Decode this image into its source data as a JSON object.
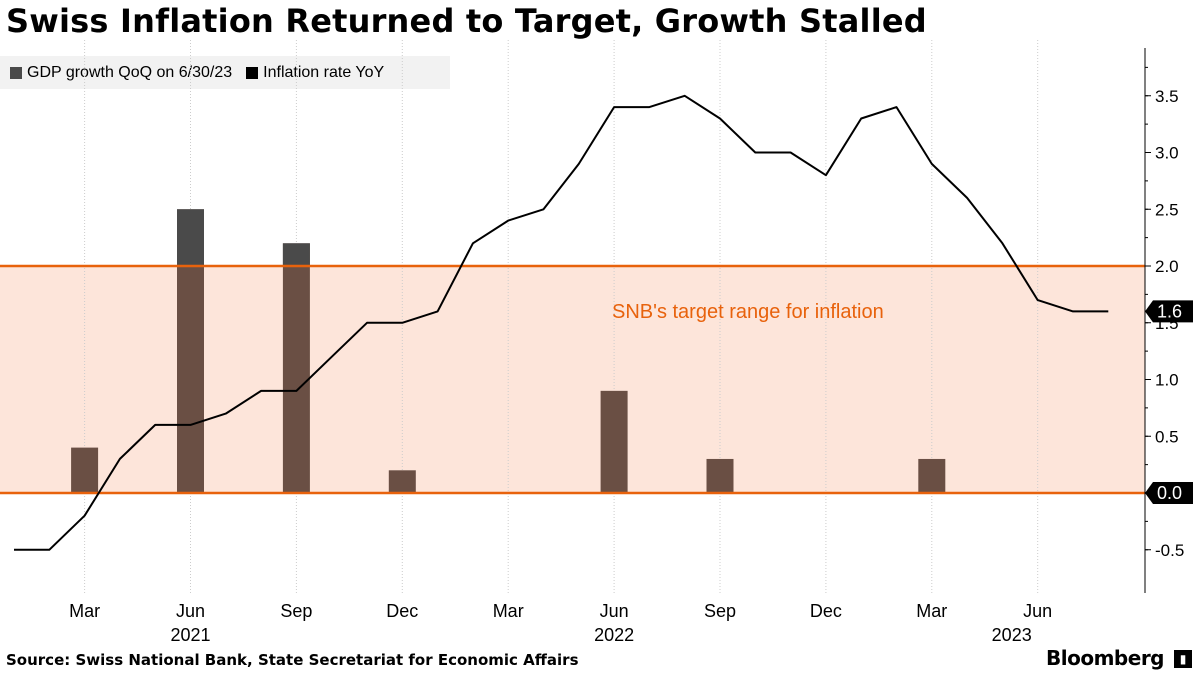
{
  "title": "Swiss Inflation Returned to Target, Growth Stalled",
  "legend": {
    "gdp_label": "GDP growth QoQ on 6/30/23",
    "inflation_label": "Inflation rate YoY"
  },
  "source": "Source: Swiss National Bank, State Secretariat for Economic Affairs",
  "brand": "Bloomberg",
  "colors": {
    "gdp_bar": "#6a4f44",
    "gdp_bar_top": "#4a4a4a",
    "inflation_line": "#000000",
    "target_band": "#fde5da",
    "target_line": "#e8620c",
    "annotation_text": "#e8620c"
  },
  "chart_data": {
    "type": "bar+line",
    "ylim": [
      -0.85,
      3.95
    ],
    "y_ticks": [
      "-0.5",
      "0.0",
      "0.5",
      "1.0",
      "1.5",
      "2.0",
      "2.5",
      "3.0",
      "3.5"
    ],
    "y_axis_position": "right",
    "x_month_labels": [
      "Mar",
      "Jun",
      "Sep",
      "Dec",
      "Mar",
      "Jun",
      "Sep",
      "Dec",
      "Mar",
      "Jun"
    ],
    "x_year_labels": [
      "2021",
      "2022",
      "2023"
    ],
    "target_range": {
      "low": 0.0,
      "high": 2.0,
      "label": "SNB's target range for inflation"
    },
    "series": [
      {
        "name": "GDP growth QoQ on 6/30/23",
        "type": "bar",
        "points": [
          {
            "x": "2021-03",
            "y": 0.4
          },
          {
            "x": "2021-06",
            "y": 2.5
          },
          {
            "x": "2021-09",
            "y": 2.2
          },
          {
            "x": "2021-12",
            "y": 0.2
          },
          {
            "x": "2022-03",
            "y": 0.0
          },
          {
            "x": "2022-06",
            "y": 0.9
          },
          {
            "x": "2022-09",
            "y": 0.3
          },
          {
            "x": "2022-12",
            "y": 0.0
          },
          {
            "x": "2023-03",
            "y": 0.3
          },
          {
            "x": "2023-06",
            "y": 0.0
          }
        ]
      },
      {
        "name": "Inflation rate YoY",
        "type": "line",
        "points": [
          {
            "x": "2021-01",
            "y": -0.5
          },
          {
            "x": "2021-02",
            "y": -0.5
          },
          {
            "x": "2021-03",
            "y": -0.2
          },
          {
            "x": "2021-04",
            "y": 0.3
          },
          {
            "x": "2021-05",
            "y": 0.6
          },
          {
            "x": "2021-06",
            "y": 0.6
          },
          {
            "x": "2021-07",
            "y": 0.7
          },
          {
            "x": "2021-08",
            "y": 0.9
          },
          {
            "x": "2021-09",
            "y": 0.9
          },
          {
            "x": "2021-10",
            "y": 1.2
          },
          {
            "x": "2021-11",
            "y": 1.5
          },
          {
            "x": "2021-12",
            "y": 1.5
          },
          {
            "x": "2022-01",
            "y": 1.6
          },
          {
            "x": "2022-02",
            "y": 2.2
          },
          {
            "x": "2022-03",
            "y": 2.4
          },
          {
            "x": "2022-04",
            "y": 2.5
          },
          {
            "x": "2022-05",
            "y": 2.9
          },
          {
            "x": "2022-06",
            "y": 3.4
          },
          {
            "x": "2022-07",
            "y": 3.4
          },
          {
            "x": "2022-08",
            "y": 3.5
          },
          {
            "x": "2022-09",
            "y": 3.3
          },
          {
            "x": "2022-10",
            "y": 3.0
          },
          {
            "x": "2022-11",
            "y": 3.0
          },
          {
            "x": "2022-12",
            "y": 2.8
          },
          {
            "x": "2023-01",
            "y": 3.3
          },
          {
            "x": "2023-02",
            "y": 3.4
          },
          {
            "x": "2023-03",
            "y": 2.9
          },
          {
            "x": "2023-04",
            "y": 2.6
          },
          {
            "x": "2023-05",
            "y": 2.2
          },
          {
            "x": "2023-06",
            "y": 1.7
          },
          {
            "x": "2023-07",
            "y": 1.6
          },
          {
            "x": "2023-08",
            "y": 1.6
          }
        ]
      }
    ],
    "callouts": [
      "1.6",
      "0.0"
    ]
  }
}
